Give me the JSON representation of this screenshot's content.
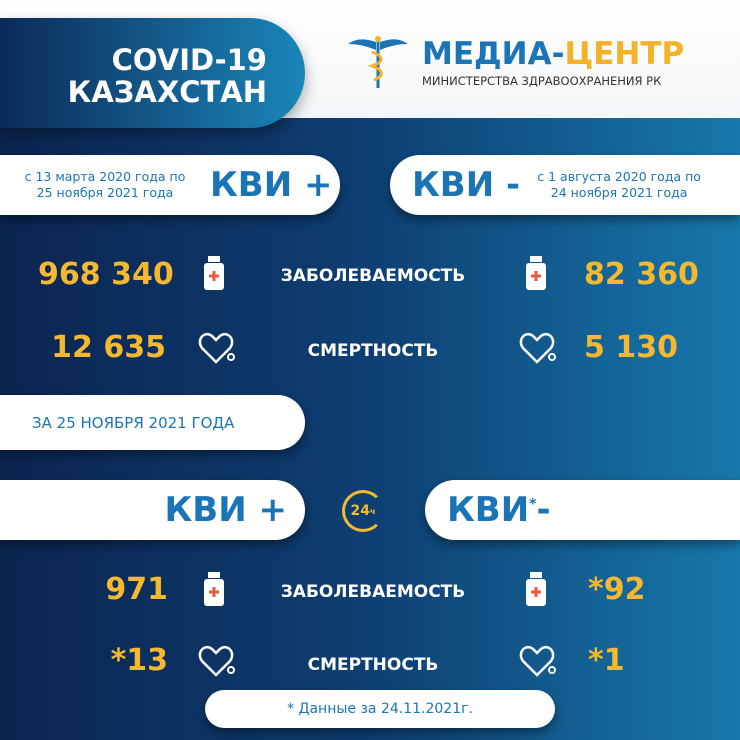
{
  "header": {
    "title_line1": "COVID-19",
    "title_line2": "КАЗАХСТАН",
    "logo_main": "МЕДИА-",
    "logo_accent": "ЦЕНТР",
    "logo_sub": "МИНИСТЕРСТВА ЗДРАВООХРАНЕНИЯ РК"
  },
  "cumulative": {
    "left": {
      "period": "с 13 марта 2020 года по 25 ноября 2021 года",
      "label": "КВИ +",
      "cases": "968 340",
      "deaths": "12 635"
    },
    "right": {
      "period": "с 1 августа 2020 года по 24 ноября 2021 года",
      "label": "КВИ -",
      "cases": "82 360",
      "deaths": "5 130"
    },
    "cases_label": "ЗАБОЛЕВАЕМОСТЬ",
    "deaths_label": "СМЕРТНОСТЬ"
  },
  "daily": {
    "date_label": "ЗА 25 НОЯБРЯ 2021 ГОДА",
    "badge": "24",
    "badge_suffix": "ч",
    "left": {
      "label": "КВИ +",
      "cases": "971",
      "deaths": "*13"
    },
    "right": {
      "label": "КВИ",
      "asterisk": "*",
      "suffix": "-",
      "cases": "*92",
      "deaths": "*1"
    },
    "cases_label": "ЗАБОЛЕВАЕМОСТЬ",
    "deaths_label": "СМЕРТНОСТЬ",
    "footnote": "* Данные за 24.11.2021г."
  },
  "colors": {
    "accent_yellow": "#f5b82e",
    "brand_blue": "#1a74b5",
    "navy": "#0b2450"
  }
}
